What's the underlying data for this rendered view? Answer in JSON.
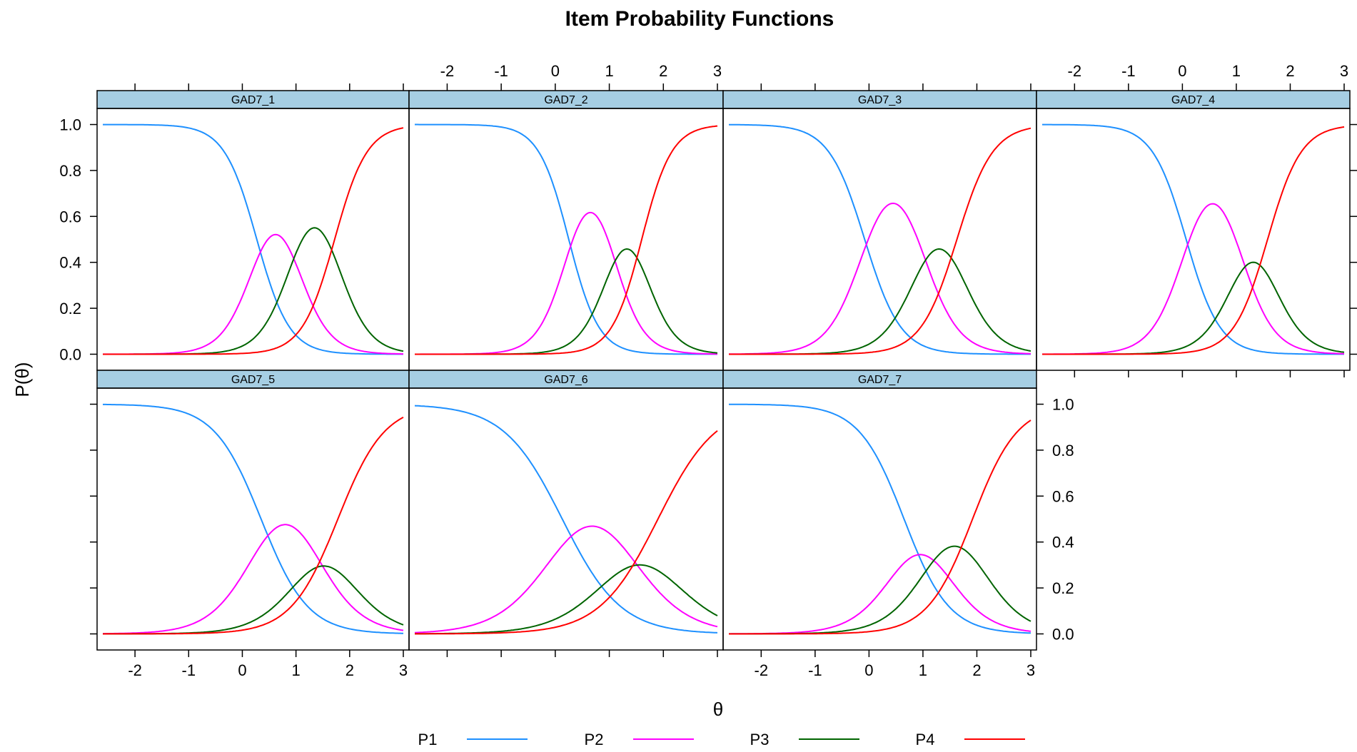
{
  "chart_data": {
    "type": "line",
    "title": "Item Probability Functions",
    "xlabel": "θ",
    "ylabel": "P(θ)",
    "xlim": [
      -2.6,
      3.0
    ],
    "ylim": [
      -0.07,
      1.07
    ],
    "x_ticks": [
      "-2",
      "-1",
      "0",
      "1",
      "2",
      "3"
    ],
    "y_ticks": [
      "0.0",
      "0.2",
      "0.4",
      "0.6",
      "0.8",
      "1.0"
    ],
    "legend": {
      "placement": "bottom",
      "entries": [
        {
          "name": "P1",
          "color": "#1e90ff"
        },
        {
          "name": "P2",
          "color": "#ff00ff"
        },
        {
          "name": "P3",
          "color": "#006400"
        },
        {
          "name": "P4",
          "color": "#ff0000"
        }
      ]
    },
    "panels": [
      {
        "name": "GAD7_1",
        "row": 0,
        "col": 0,
        "a": 3.3,
        "b": [
          0.27,
          0.97,
          1.72
        ]
      },
      {
        "name": "GAD7_2",
        "row": 0,
        "col": 1,
        "a": 3.6,
        "b": [
          0.25,
          1.05,
          1.6
        ]
      },
      {
        "name": "GAD7_3",
        "row": 0,
        "col": 2,
        "a": 3.0,
        "b": [
          -0.08,
          0.97,
          1.63
        ]
      },
      {
        "name": "GAD7_4",
        "row": 0,
        "col": 3,
        "a": 3.2,
        "b": [
          0.07,
          1.05,
          1.58
        ]
      },
      {
        "name": "GAD7_5",
        "row": 1,
        "col": 0,
        "a": 2.3,
        "b": [
          0.35,
          1.25,
          1.78
        ]
      },
      {
        "name": "GAD7_6",
        "row": 1,
        "col": 1,
        "a": 1.85,
        "b": [
          0.13,
          1.23,
          1.9
        ]
      },
      {
        "name": "GAD7_7",
        "row": 1,
        "col": 2,
        "a": 2.4,
        "b": [
          0.65,
          1.25,
          1.92
        ]
      }
    ]
  }
}
